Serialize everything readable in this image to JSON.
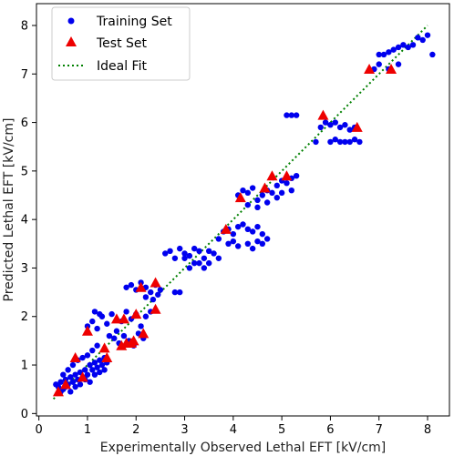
{
  "chart_data": {
    "type": "scatter",
    "title": "",
    "xlabel": "Experimentally Observed Lethal EFT [kV/cm]",
    "ylabel": "Predicted Lethal EFT [kV/cm]",
    "xlim": [
      -0.05,
      8.45
    ],
    "ylim": [
      -0.05,
      8.45
    ],
    "xticks": [
      0,
      1,
      2,
      3,
      4,
      5,
      6,
      7,
      8
    ],
    "yticks": [
      0,
      1,
      2,
      3,
      4,
      5,
      6,
      7,
      8
    ],
    "grid": false,
    "legend_position": "top-left",
    "series": [
      {
        "name": "Training Set",
        "marker": "circle",
        "color": "#0000ee",
        "points": [
          [
            0.35,
            0.6
          ],
          [
            0.4,
            0.55
          ],
          [
            0.45,
            0.65
          ],
          [
            0.5,
            0.5
          ],
          [
            0.55,
            0.7
          ],
          [
            0.6,
            0.6
          ],
          [
            0.65,
            0.75
          ],
          [
            0.7,
            0.65
          ],
          [
            0.75,
            0.8
          ],
          [
            0.8,
            0.7
          ],
          [
            0.85,
            0.85
          ],
          [
            0.9,
            0.75
          ],
          [
            0.95,
            0.9
          ],
          [
            1.0,
            0.8
          ],
          [
            1.05,
            1.0
          ],
          [
            1.1,
            0.9
          ],
          [
            1.15,
            1.05
          ],
          [
            1.2,
            0.95
          ],
          [
            1.25,
            1.1
          ],
          [
            1.3,
            1.0
          ],
          [
            1.35,
            1.15
          ],
          [
            1.4,
            1.05
          ],
          [
            0.5,
            0.8
          ],
          [
            0.6,
            0.9
          ],
          [
            0.7,
            1.0
          ],
          [
            0.8,
            1.1
          ],
          [
            0.9,
            1.15
          ],
          [
            1.0,
            1.2
          ],
          [
            1.1,
            1.3
          ],
          [
            1.2,
            1.4
          ],
          [
            0.45,
            0.45
          ],
          [
            0.55,
            0.55
          ],
          [
            0.65,
            0.45
          ],
          [
            0.75,
            0.55
          ],
          [
            0.85,
            0.6
          ],
          [
            0.95,
            0.7
          ],
          [
            1.05,
            0.65
          ],
          [
            1.15,
            0.8
          ],
          [
            1.25,
            0.85
          ],
          [
            1.35,
            0.9
          ],
          [
            1.0,
            1.8
          ],
          [
            1.1,
            1.9
          ],
          [
            1.2,
            1.75
          ],
          [
            1.3,
            2.0
          ],
          [
            1.4,
            1.85
          ],
          [
            1.5,
            2.05
          ],
          [
            1.6,
            1.7
          ],
          [
            1.7,
            1.9
          ],
          [
            1.8,
            2.1
          ],
          [
            1.9,
            1.95
          ],
          [
            2.0,
            2.05
          ],
          [
            2.1,
            1.8
          ],
          [
            2.2,
            2.0
          ],
          [
            2.3,
            2.1
          ],
          [
            1.15,
            2.1
          ],
          [
            1.25,
            2.05
          ],
          [
            1.45,
            1.6
          ],
          [
            1.55,
            1.55
          ],
          [
            1.65,
            1.45
          ],
          [
            1.75,
            1.6
          ],
          [
            1.85,
            1.5
          ],
          [
            1.95,
            1.4
          ],
          [
            2.05,
            1.65
          ],
          [
            2.15,
            1.55
          ],
          [
            1.8,
            2.6
          ],
          [
            1.9,
            2.65
          ],
          [
            2.0,
            2.55
          ],
          [
            2.1,
            2.7
          ],
          [
            2.2,
            2.6
          ],
          [
            2.3,
            2.5
          ],
          [
            2.4,
            2.65
          ],
          [
            2.5,
            2.55
          ],
          [
            2.2,
            2.4
          ],
          [
            2.35,
            2.35
          ],
          [
            2.45,
            2.45
          ],
          [
            2.8,
            2.5
          ],
          [
            2.9,
            2.5
          ],
          [
            2.6,
            3.3
          ],
          [
            2.7,
            3.35
          ],
          [
            2.8,
            3.2
          ],
          [
            2.9,
            3.4
          ],
          [
            3.0,
            3.3
          ],
          [
            3.1,
            3.25
          ],
          [
            3.2,
            3.4
          ],
          [
            3.3,
            3.35
          ],
          [
            3.4,
            3.2
          ],
          [
            3.5,
            3.1
          ],
          [
            3.6,
            3.3
          ],
          [
            3.7,
            3.2
          ],
          [
            3.3,
            3.1
          ],
          [
            3.1,
            3.0
          ],
          [
            3.4,
            3.0
          ],
          [
            3.0,
            3.2
          ],
          [
            3.2,
            3.1
          ],
          [
            3.5,
            3.35
          ],
          [
            3.7,
            3.6
          ],
          [
            3.8,
            3.75
          ],
          [
            3.9,
            3.8
          ],
          [
            4.0,
            3.7
          ],
          [
            4.1,
            3.85
          ],
          [
            4.2,
            3.9
          ],
          [
            4.3,
            3.8
          ],
          [
            4.4,
            3.75
          ],
          [
            4.5,
            3.85
          ],
          [
            4.6,
            3.7
          ],
          [
            4.7,
            3.6
          ],
          [
            4.0,
            3.55
          ],
          [
            4.1,
            3.45
          ],
          [
            4.3,
            3.5
          ],
          [
            4.4,
            3.4
          ],
          [
            4.6,
            3.5
          ],
          [
            3.9,
            3.5
          ],
          [
            4.5,
            3.55
          ],
          [
            4.1,
            4.5
          ],
          [
            4.2,
            4.6
          ],
          [
            4.3,
            4.55
          ],
          [
            4.4,
            4.65
          ],
          [
            4.5,
            4.4
          ],
          [
            4.6,
            4.5
          ],
          [
            4.7,
            4.6
          ],
          [
            4.8,
            4.55
          ],
          [
            4.9,
            4.7
          ],
          [
            5.0,
            4.8
          ],
          [
            5.1,
            4.75
          ],
          [
            5.2,
            4.85
          ],
          [
            5.3,
            4.9
          ],
          [
            5.0,
            4.55
          ],
          [
            5.2,
            4.6
          ],
          [
            4.3,
            4.3
          ],
          [
            4.5,
            4.25
          ],
          [
            4.7,
            4.35
          ],
          [
            4.9,
            4.45
          ],
          [
            5.1,
            6.15
          ],
          [
            5.2,
            6.15
          ],
          [
            5.3,
            6.15
          ],
          [
            5.7,
            5.6
          ],
          [
            5.8,
            5.9
          ],
          [
            5.9,
            6.0
          ],
          [
            6.0,
            5.95
          ],
          [
            6.1,
            6.0
          ],
          [
            6.2,
            5.9
          ],
          [
            6.3,
            5.95
          ],
          [
            6.4,
            5.85
          ],
          [
            6.5,
            5.9
          ],
          [
            6.0,
            5.6
          ],
          [
            6.1,
            5.65
          ],
          [
            6.2,
            5.6
          ],
          [
            6.3,
            5.6
          ],
          [
            6.4,
            5.6
          ],
          [
            6.5,
            5.65
          ],
          [
            6.6,
            5.6
          ],
          [
            6.9,
            7.1
          ],
          [
            7.0,
            7.2
          ],
          [
            7.1,
            7.4
          ],
          [
            7.2,
            7.45
          ],
          [
            7.3,
            7.5
          ],
          [
            7.4,
            7.55
          ],
          [
            7.5,
            7.6
          ],
          [
            7.6,
            7.55
          ],
          [
            7.7,
            7.6
          ],
          [
            7.8,
            7.75
          ],
          [
            7.9,
            7.7
          ],
          [
            8.0,
            7.8
          ],
          [
            8.1,
            7.4
          ],
          [
            7.2,
            7.1
          ],
          [
            7.4,
            7.2
          ],
          [
            7.0,
            7.4
          ]
        ]
      },
      {
        "name": "Test Set",
        "marker": "triangle",
        "color": "#ee0000",
        "points": [
          [
            0.4,
            0.45
          ],
          [
            0.55,
            0.6
          ],
          [
            0.75,
            1.15
          ],
          [
            0.9,
            0.75
          ],
          [
            1.0,
            1.7
          ],
          [
            1.35,
            1.35
          ],
          [
            1.4,
            1.15
          ],
          [
            1.6,
            1.95
          ],
          [
            1.7,
            1.4
          ],
          [
            1.75,
            1.95
          ],
          [
            1.8,
            1.45
          ],
          [
            1.9,
            1.45
          ],
          [
            1.95,
            1.5
          ],
          [
            2.0,
            2.05
          ],
          [
            2.15,
            1.65
          ],
          [
            2.1,
            2.6
          ],
          [
            2.4,
            2.7
          ],
          [
            2.4,
            2.15
          ],
          [
            3.85,
            3.8
          ],
          [
            4.15,
            4.45
          ],
          [
            4.65,
            4.65
          ],
          [
            4.8,
            4.9
          ],
          [
            5.1,
            4.9
          ],
          [
            5.85,
            6.15
          ],
          [
            6.55,
            5.9
          ],
          [
            6.8,
            7.1
          ],
          [
            7.25,
            7.1
          ]
        ]
      },
      {
        "name": "Ideal Fit",
        "marker": "dotted-line",
        "color": "#008000",
        "points": [
          [
            0.3,
            0.3
          ],
          [
            8.0,
            8.0
          ]
        ]
      }
    ]
  }
}
